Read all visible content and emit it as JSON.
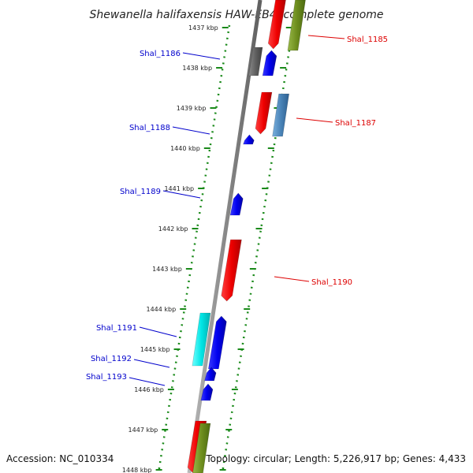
{
  "title": "Shewanella halifaxensis HAW-EB4, complete genome",
  "footer": {
    "accession": "Accession: NC_010334",
    "summary": "Topology: circular; Length: 5,226,917 bp; Genes: 4,433"
  },
  "ticks": [
    {
      "label": "1437 kbp",
      "kbp": 1437
    },
    {
      "label": "1438 kbp",
      "kbp": 1438
    },
    {
      "label": "1439 kbp",
      "kbp": 1439
    },
    {
      "label": "1440 kbp",
      "kbp": 1440
    },
    {
      "label": "1441 kbp",
      "kbp": 1441
    },
    {
      "label": "1442 kbp",
      "kbp": 1442
    },
    {
      "label": "1443 kbp",
      "kbp": 1443
    },
    {
      "label": "1444 kbp",
      "kbp": 1444
    },
    {
      "label": "1445 kbp",
      "kbp": 1445
    },
    {
      "label": "1446 kbp",
      "kbp": 1446
    },
    {
      "label": "1447 kbp",
      "kbp": 1447
    },
    {
      "label": "1448 kbp",
      "kbp": 1448
    }
  ],
  "gene_labels": [
    {
      "name": "Shal_1185",
      "strand": "forward",
      "color": "#dd0000"
    },
    {
      "name": "Shal_1186",
      "strand": "reverse",
      "color": "#0000cc"
    },
    {
      "name": "Shal_1187",
      "strand": "forward",
      "color": "#dd0000"
    },
    {
      "name": "Shal_1188",
      "strand": "reverse",
      "color": "#0000cc"
    },
    {
      "name": "Shal_1189",
      "strand": "reverse",
      "color": "#0000cc"
    },
    {
      "name": "Shal_1190",
      "strand": "forward",
      "color": "#dd0000"
    },
    {
      "name": "Shal_1191",
      "strand": "reverse",
      "color": "#0000cc"
    },
    {
      "name": "Shal_1192",
      "strand": "reverse",
      "color": "#0000cc"
    },
    {
      "name": "Shal_1193",
      "strand": "reverse",
      "color": "#0000cc"
    }
  ],
  "colors": {
    "forward_cds": "#ee0000",
    "reverse_cds": "#0000ee",
    "backbone": "#8a8a8a",
    "ruler_dots": "#1a8a1a",
    "rna_green": "#6e8e1e",
    "rna_grey": "#606060",
    "rna_steel": "#4a84b8",
    "rna_cyan": "#00e5e5"
  }
}
